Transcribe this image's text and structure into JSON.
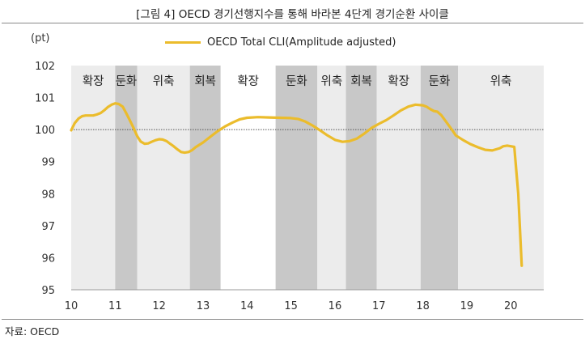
{
  "title": "[그림 4] OECD 경기선행지수를 통해 바라본 4단계 경기순환 사이클",
  "source": "자료: OECD",
  "colors": {
    "line": "#EBBC2C",
    "band_light": "#ECECEC",
    "band_dark": "#C8C8C8",
    "band_white": "#FFFFFF",
    "baseline": "#555555"
  },
  "chart_data": {
    "type": "line",
    "title": "[그림 4] OECD 경기선행지수를 통해 바라본 4단계 경기순환 사이클",
    "unit_label": "(pt)",
    "xlabel": "",
    "ylabel": "",
    "ylim": [
      95,
      102
    ],
    "xlim": [
      2010,
      2020.75
    ],
    "y_ticks": [
      "95",
      "96",
      "97",
      "98",
      "99",
      "100",
      "101",
      "102"
    ],
    "x_ticks": [
      "10",
      "11",
      "12",
      "13",
      "14",
      "15",
      "16",
      "17",
      "18",
      "19",
      "20"
    ],
    "reference_line": 100,
    "grid": false,
    "legend_position": "top-center",
    "series": [
      {
        "name": "OECD Total CLI(Amplitude adjusted)",
        "points": [
          [
            2010.0,
            99.98
          ],
          [
            2010.08,
            100.2
          ],
          [
            2010.17,
            100.35
          ],
          [
            2010.25,
            100.42
          ],
          [
            2010.33,
            100.44
          ],
          [
            2010.42,
            100.44
          ],
          [
            2010.5,
            100.44
          ],
          [
            2010.58,
            100.47
          ],
          [
            2010.67,
            100.52
          ],
          [
            2010.75,
            100.6
          ],
          [
            2010.83,
            100.7
          ],
          [
            2010.92,
            100.78
          ],
          [
            2011.0,
            100.82
          ],
          [
            2011.08,
            100.8
          ],
          [
            2011.17,
            100.72
          ],
          [
            2011.25,
            100.52
          ],
          [
            2011.33,
            100.3
          ],
          [
            2011.42,
            100.05
          ],
          [
            2011.5,
            99.8
          ],
          [
            2011.58,
            99.63
          ],
          [
            2011.67,
            99.56
          ],
          [
            2011.75,
            99.57
          ],
          [
            2011.83,
            99.62
          ],
          [
            2011.92,
            99.67
          ],
          [
            2012.0,
            99.7
          ],
          [
            2012.08,
            99.69
          ],
          [
            2012.17,
            99.64
          ],
          [
            2012.25,
            99.56
          ],
          [
            2012.33,
            99.48
          ],
          [
            2012.42,
            99.38
          ],
          [
            2012.5,
            99.3
          ],
          [
            2012.58,
            99.28
          ],
          [
            2012.67,
            99.3
          ],
          [
            2012.75,
            99.36
          ],
          [
            2012.83,
            99.45
          ],
          [
            2013.0,
            99.6
          ],
          [
            2013.17,
            99.78
          ],
          [
            2013.33,
            99.95
          ],
          [
            2013.5,
            100.1
          ],
          [
            2013.67,
            100.22
          ],
          [
            2013.83,
            100.32
          ],
          [
            2014.0,
            100.37
          ],
          [
            2014.25,
            100.39
          ],
          [
            2014.5,
            100.38
          ],
          [
            2014.75,
            100.37
          ],
          [
            2015.0,
            100.36
          ],
          [
            2015.17,
            100.33
          ],
          [
            2015.33,
            100.25
          ],
          [
            2015.5,
            100.12
          ],
          [
            2015.67,
            99.97
          ],
          [
            2015.83,
            99.82
          ],
          [
            2016.0,
            99.68
          ],
          [
            2016.17,
            99.62
          ],
          [
            2016.33,
            99.64
          ],
          [
            2016.5,
            99.72
          ],
          [
            2016.67,
            99.88
          ],
          [
            2016.83,
            100.05
          ],
          [
            2017.0,
            100.18
          ],
          [
            2017.17,
            100.3
          ],
          [
            2017.33,
            100.44
          ],
          [
            2017.5,
            100.6
          ],
          [
            2017.67,
            100.72
          ],
          [
            2017.83,
            100.78
          ],
          [
            2018.0,
            100.76
          ],
          [
            2018.08,
            100.72
          ],
          [
            2018.17,
            100.64
          ],
          [
            2018.25,
            100.58
          ],
          [
            2018.33,
            100.56
          ],
          [
            2018.42,
            100.45
          ],
          [
            2018.5,
            100.3
          ],
          [
            2018.58,
            100.15
          ],
          [
            2018.67,
            99.98
          ],
          [
            2018.75,
            99.82
          ],
          [
            2018.92,
            99.67
          ],
          [
            2019.08,
            99.55
          ],
          [
            2019.25,
            99.45
          ],
          [
            2019.42,
            99.37
          ],
          [
            2019.58,
            99.35
          ],
          [
            2019.75,
            99.42
          ],
          [
            2019.83,
            99.48
          ],
          [
            2019.92,
            99.5
          ],
          [
            2020.0,
            99.48
          ],
          [
            2020.08,
            99.46
          ],
          [
            2020.17,
            98.0
          ],
          [
            2020.25,
            95.75
          ]
        ]
      }
    ],
    "phases": [
      {
        "label": "확장",
        "start": 2010.0,
        "end": 2011.0,
        "shade": "light"
      },
      {
        "label": "둔화",
        "start": 2011.0,
        "end": 2011.5,
        "shade": "dark"
      },
      {
        "label": "위축",
        "start": 2011.5,
        "end": 2012.7,
        "shade": "light"
      },
      {
        "label": "회복",
        "start": 2012.7,
        "end": 2013.4,
        "shade": "dark"
      },
      {
        "label": "확장",
        "start": 2013.4,
        "end": 2014.65,
        "shade": "white"
      },
      {
        "label": "둔화",
        "start": 2014.65,
        "end": 2015.6,
        "shade": "dark"
      },
      {
        "label": "위축",
        "start": 2015.6,
        "end": 2016.25,
        "shade": "light"
      },
      {
        "label": "회복",
        "start": 2016.25,
        "end": 2016.95,
        "shade": "dark"
      },
      {
        "label": "확장",
        "start": 2016.95,
        "end": 2017.95,
        "shade": "light"
      },
      {
        "label": "둔화",
        "start": 2017.95,
        "end": 2018.8,
        "shade": "dark"
      },
      {
        "label": "위축",
        "start": 2018.8,
        "end": 2020.75,
        "shade": "light"
      }
    ]
  }
}
